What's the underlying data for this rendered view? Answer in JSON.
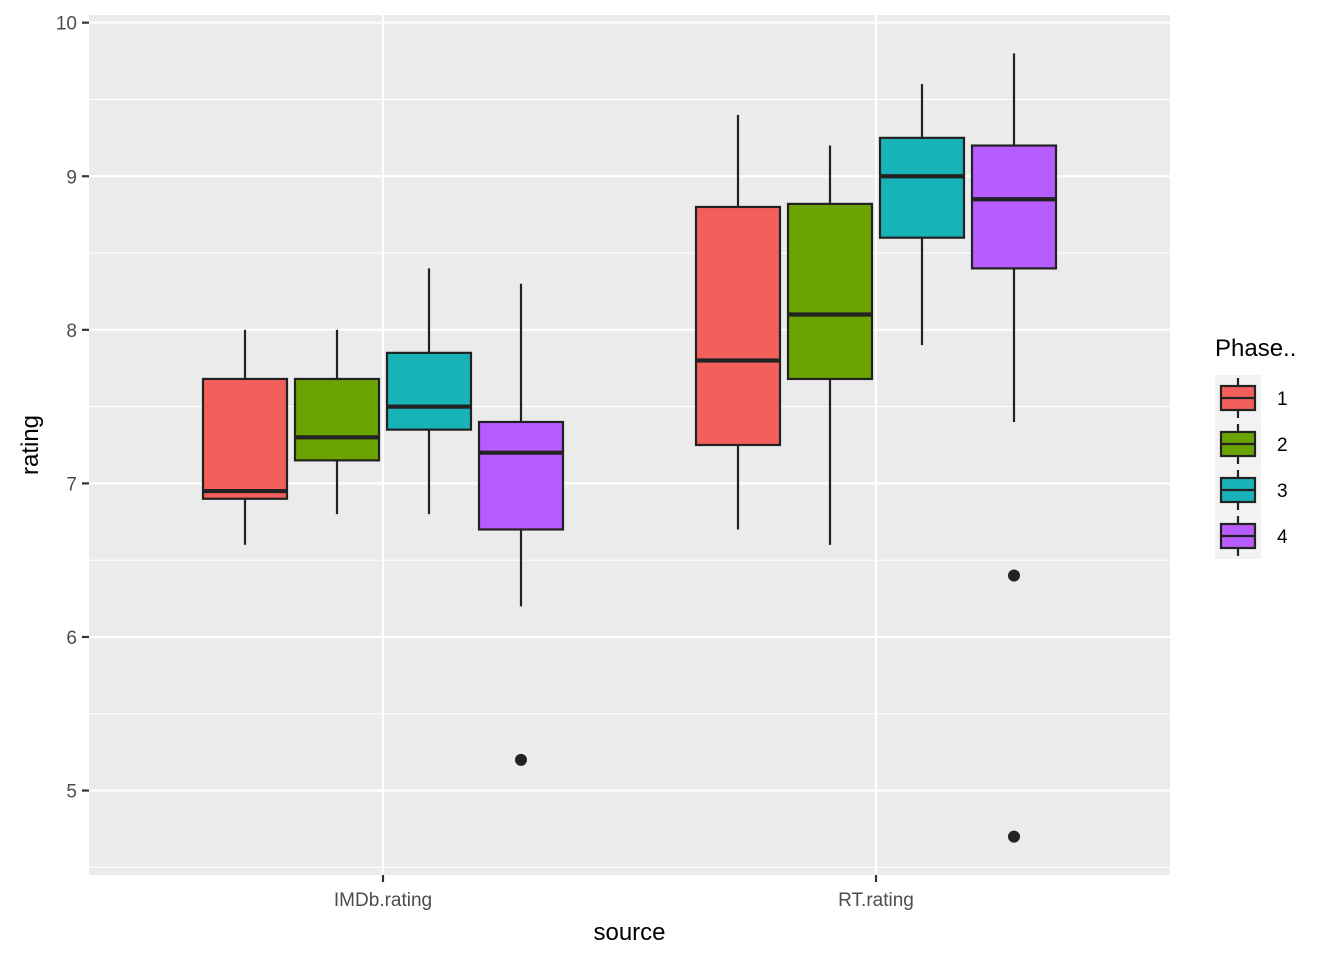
{
  "chart_data": {
    "type": "boxplot",
    "title": "",
    "xlabel": "source",
    "ylabel": "rating",
    "ylim": [
      4.45,
      10.05
    ],
    "yticks": [
      5,
      6,
      7,
      8,
      9,
      10
    ],
    "ytick_labels": [
      "5",
      "6",
      "7",
      "8",
      "9",
      "10"
    ],
    "categories": [
      "IMDb.rating",
      "RT.rating"
    ],
    "legend": {
      "title": "Phase..",
      "position": "right",
      "entries": [
        {
          "label": "1",
          "color": "#F8766D"
        },
        {
          "label": "2",
          "color": "#7CAE00"
        },
        {
          "label": "3",
          "color": "#00BFC4"
        },
        {
          "label": "4",
          "color": "#C77CFF"
        }
      ]
    },
    "series": [
      {
        "name": "1",
        "color": "#F3605B",
        "boxes": [
          {
            "category": "IMDb.rating",
            "whisker_low": 6.6,
            "q1": 6.9,
            "median": 6.95,
            "q3": 7.68,
            "whisker_high": 8.0,
            "outliers": []
          },
          {
            "category": "RT.rating",
            "whisker_low": 6.7,
            "q1": 7.25,
            "median": 7.8,
            "q3": 8.8,
            "whisker_high": 9.4,
            "outliers": []
          }
        ]
      },
      {
        "name": "2",
        "color": "#6BA300",
        "boxes": [
          {
            "category": "IMDb.rating",
            "whisker_low": 6.8,
            "q1": 7.15,
            "median": 7.3,
            "q3": 7.68,
            "whisker_high": 8.0,
            "outliers": []
          },
          {
            "category": "RT.rating",
            "whisker_low": 6.6,
            "q1": 7.68,
            "median": 8.1,
            "q3": 8.82,
            "whisker_high": 9.2,
            "outliers": []
          }
        ]
      },
      {
        "name": "3",
        "color": "#17B3B8",
        "boxes": [
          {
            "category": "IMDb.rating",
            "whisker_low": 6.8,
            "q1": 7.35,
            "median": 7.5,
            "q3": 7.85,
            "whisker_high": 8.4,
            "outliers": []
          },
          {
            "category": "RT.rating",
            "whisker_low": 7.9,
            "q1": 8.6,
            "median": 9.0,
            "q3": 9.25,
            "whisker_high": 9.6,
            "outliers": []
          }
        ]
      },
      {
        "name": "4",
        "color": "#B75CFF",
        "boxes": [
          {
            "category": "IMDb.rating",
            "whisker_low": 6.2,
            "q1": 6.7,
            "median": 7.2,
            "q3": 7.4,
            "whisker_high": 8.3,
            "outliers": [
              5.2
            ]
          },
          {
            "category": "RT.rating",
            "whisker_low": 7.4,
            "q1": 8.4,
            "median": 8.85,
            "q3": 9.2,
            "whisker_high": 9.8,
            "outliers": [
              6.4,
              4.7
            ]
          }
        ]
      }
    ],
    "grid": true,
    "panel_background": "#EBEBEB",
    "grid_color": "#FFFFFF"
  }
}
